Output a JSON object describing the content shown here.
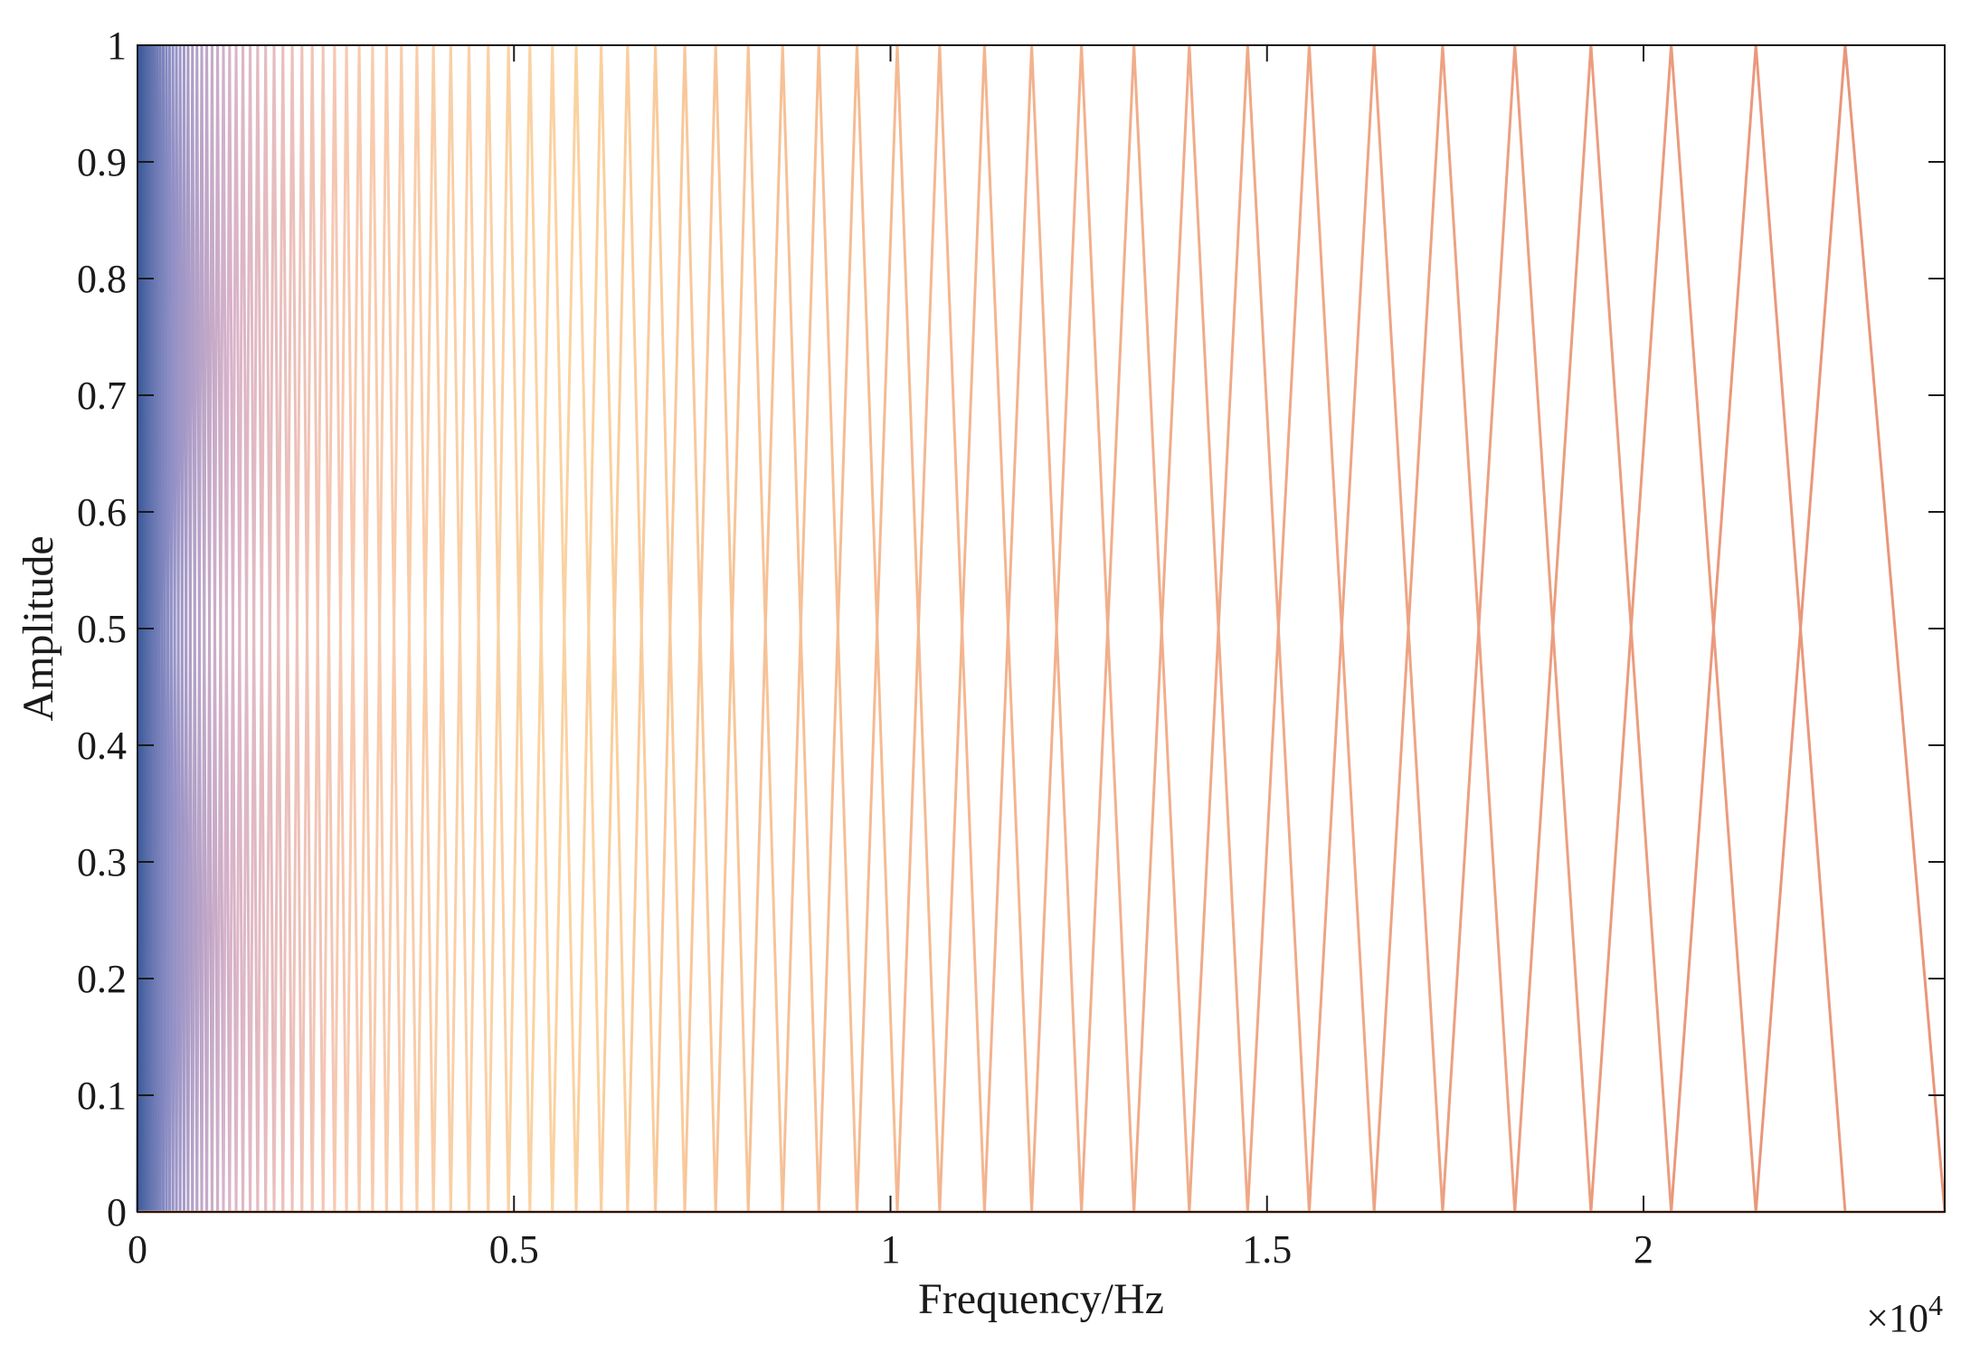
{
  "chart_data": {
    "type": "line",
    "title": "",
    "xlabel": "Frequency/Hz",
    "ylabel": "Amplitude",
    "x_exponent_label": "×10",
    "x_exponent_power": "4",
    "xlim": [
      0,
      24000
    ],
    "ylim": [
      0,
      1
    ],
    "x_ticks": [
      0,
      5000,
      10000,
      15000,
      20000
    ],
    "x_tick_labels": [
      "0",
      "0.5",
      "1",
      "1.5",
      "2"
    ],
    "y_ticks": [
      0,
      0.1,
      0.2,
      0.3,
      0.4,
      0.5,
      0.6,
      0.7,
      0.8,
      0.9,
      1
    ],
    "y_tick_labels": [
      "0",
      "0.1",
      "0.2",
      "0.3",
      "0.4",
      "0.5",
      "0.6",
      "0.7",
      "0.8",
      "0.9",
      "1"
    ],
    "grid": false,
    "legend": "none",
    "filterbank": {
      "description_of_series": "triangular filters; each filter i rises from center[i-1] to peak at center[i] and falls to center[i+1]",
      "center_frequencies_hz": [
        0,
        25,
        51,
        78,
        106,
        135,
        166,
        198,
        231,
        266,
        303,
        342,
        383,
        425,
        470,
        517,
        566,
        618,
        672,
        730,
        790,
        853,
        920,
        990,
        1064,
        1141,
        1223,
        1310,
        1400,
        1496,
        1596,
        1702,
        1814,
        1931,
        2055,
        2184,
        2321,
        2465,
        2617,
        2776,
        2944,
        3122,
        3308,
        3505,
        3711,
        3930,
        4160,
        4402,
        4658,
        4927,
        5211,
        5510,
        5826,
        6158,
        6509,
        6878,
        7268,
        7678,
        8111,
        8567,
        9048,
        9555,
        10090,
        10653,
        11248,
        11875,
        12536,
        13233,
        13968,
        14743,
        15561,
        16423,
        17332,
        18291,
        19302,
        20368,
        21492,
        22678,
        24000
      ],
      "peak_amplitude": 1,
      "color_stops": [
        "#3a5a9a",
        "#8f8fc6",
        "#d9b3c9",
        "#f7c9b0",
        "#fbd3a0",
        "#f3b48f",
        "#e9967a"
      ]
    }
  }
}
